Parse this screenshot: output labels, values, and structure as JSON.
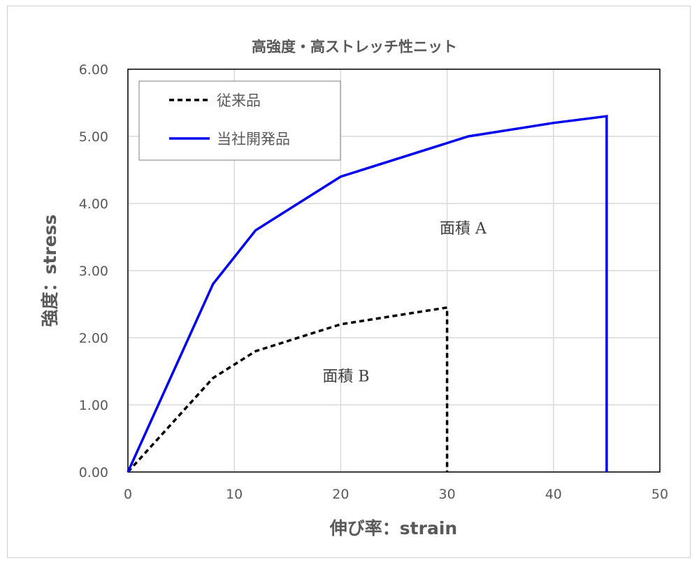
{
  "chart_data": {
    "type": "line",
    "title": "高強度・高ストレッチ性ニット",
    "xlabel": "伸び率：strain",
    "ylabel": "強度：stress",
    "xlim": [
      0,
      50
    ],
    "ylim": [
      0,
      6
    ],
    "xticks": [
      "0",
      "10",
      "20",
      "30",
      "40",
      "50"
    ],
    "yticks": [
      "0.00",
      "1.00",
      "2.00",
      "3.00",
      "4.00",
      "5.00",
      "6.00"
    ],
    "grid": true,
    "legend_position": "top-left",
    "series": [
      {
        "name": "従来品",
        "style": "dashed",
        "color": "#000000",
        "points": [
          [
            0,
            0
          ],
          [
            8,
            1.4
          ],
          [
            12,
            1.8
          ],
          [
            20,
            2.2
          ],
          [
            30,
            2.45
          ],
          [
            30,
            0
          ]
        ]
      },
      {
        "name": "当社開発品",
        "style": "solid",
        "color": "#0000ee",
        "points": [
          [
            0,
            0
          ],
          [
            8,
            2.8
          ],
          [
            12,
            3.6
          ],
          [
            20,
            4.4
          ],
          [
            32,
            5.0
          ],
          [
            40,
            5.2
          ],
          [
            45,
            5.3
          ],
          [
            45,
            0
          ]
        ]
      }
    ],
    "annotations": [
      {
        "text": "面積 A",
        "x": 31.5,
        "y": 3.55
      },
      {
        "text": "面積 B",
        "x": 20.5,
        "y": 1.35
      }
    ]
  }
}
